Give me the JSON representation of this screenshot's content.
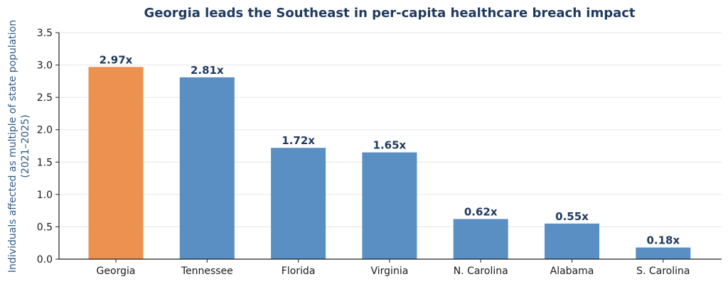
{
  "chart_data": {
    "type": "bar",
    "title": "Georgia leads the Southeast in per-capita healthcare breach impact",
    "xlabel": "",
    "ylabel_lines": [
      "Individuals affected as multiple of state population",
      "(2021–2025)"
    ],
    "categories": [
      "Georgia",
      "Tennessee",
      "Florida",
      "Virginia",
      "N. Carolina",
      "Alabama",
      "S. Carolina"
    ],
    "values": [
      2.97,
      2.81,
      1.72,
      1.65,
      0.62,
      0.55,
      0.18
    ],
    "data_labels": [
      "2.97x",
      "2.81x",
      "1.72x",
      "1.65x",
      "0.62x",
      "0.55x",
      "0.18x"
    ],
    "ylim": [
      0,
      3.5
    ],
    "yticks": [
      0.0,
      0.5,
      1.0,
      1.5,
      2.0,
      2.5,
      3.0,
      3.5
    ],
    "ytick_labels": [
      "0.0",
      "0.5",
      "1.0",
      "1.5",
      "2.0",
      "2.5",
      "3.0",
      "3.5"
    ],
    "highlight_index": 0,
    "colors": {
      "highlight": "#ec9150",
      "default": "#5a8fc3",
      "title": "#1f3a5f",
      "ylabel": "#2e5c8a"
    },
    "grid": true,
    "legend": "none"
  }
}
